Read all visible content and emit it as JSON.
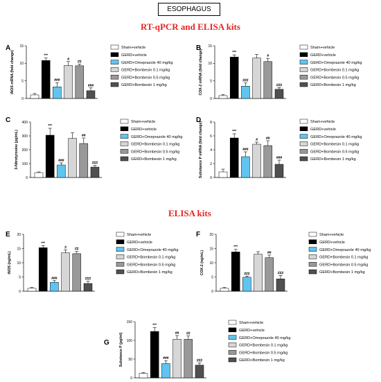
{
  "header": {
    "box_title": "ESOPHAGUS"
  },
  "sections": {
    "rtqpcr_title": "RT-qPCR and ELISA kits",
    "elisa_title": "ELISA kits"
  },
  "colors": {
    "sham": "#ffffff",
    "gerd": "#000000",
    "omeprazole": "#5fc5f0",
    "b01": "#d6d6d6",
    "b05": "#999999",
    "b1": "#505050",
    "section_red": "#e3261f"
  },
  "chart_data": [
    {
      "type": "bar",
      "panel": "A",
      "ylabel": "iNOS mRNA (fold change)",
      "ylim": [
        0,
        15
      ],
      "yticks": [
        0,
        5,
        10,
        15
      ],
      "categories": [
        "Sham+vehicle",
        "GERD+vehicle",
        "GERD+Omeprazole 40 mg/kg",
        "GERD+Bombesin 0.1 mg/kg",
        "GERD+Bombesin 0.5 mg/kg",
        "GERD+Bombesin 1 mg/kg"
      ],
      "values": [
        1.0,
        10.8,
        3.3,
        9.4,
        9.3,
        2.2
      ],
      "errors": [
        0.4,
        0.7,
        1.2,
        1.1,
        0.5,
        0.8
      ],
      "annotations": [
        "",
        "***",
        "###",
        "#",
        "##",
        "###"
      ]
    },
    {
      "type": "bar",
      "panel": "B",
      "ylabel": "COX-2 mRNA (fold change)",
      "ylim": [
        0,
        15
      ],
      "yticks": [
        0,
        5,
        10,
        15
      ],
      "categories": [
        "Sham+vehicle",
        "GERD+vehicle",
        "GERD+Omeprazole 40 mg/kg",
        "GERD+Bombesin 0.1 mg/kg",
        "GERD+Bombesin 0.5 mg/kg",
        "GERD+Bombesin 1 mg/kg"
      ],
      "values": [
        0.8,
        11.8,
        3.5,
        11.5,
        10.5,
        2.6
      ],
      "errors": [
        0.3,
        0.6,
        0.9,
        1.0,
        0.9,
        0.5
      ],
      "annotations": [
        "",
        "***",
        "###",
        "",
        "#",
        "###"
      ]
    },
    {
      "type": "bar",
      "panel": "C",
      "ylabel": "3-Nitrotyrosine (pg/mL)",
      "ylim": [
        0,
        400
      ],
      "yticks": [
        0,
        100,
        200,
        300,
        400
      ],
      "categories": [
        "Sham+vehicle",
        "GERD+vehicle",
        "GERD+Omeprazole 40 mg/kg",
        "GERD+Bombesin 0.1 mg/kg",
        "GERD+Bombesin 0.5 mg/kg",
        "GERD+Bombesin 1 mg/kg"
      ],
      "values": [
        35,
        305,
        90,
        282,
        245,
        75
      ],
      "errors": [
        5,
        50,
        15,
        40,
        40,
        12
      ],
      "annotations": [
        "",
        "***",
        "###",
        "",
        "##",
        "###"
      ]
    },
    {
      "type": "bar",
      "panel": "D",
      "ylabel": "Substance P mRNA (fold change)",
      "ylim": [
        0,
        8
      ],
      "yticks": [
        0,
        2,
        4,
        6,
        8
      ],
      "categories": [
        "Sham+vehicle",
        "GERD+vehicle",
        "GERD+Omeprazole 40 mg/kg",
        "GERD+Bombesin 0.1 mg/kg",
        "GERD+Bombesin 0.5 mg/kg",
        "GERD+Bombesin 1 mg/kg"
      ],
      "values": [
        0.8,
        5.7,
        3.0,
        4.8,
        4.6,
        1.9
      ],
      "errors": [
        0.4,
        0.6,
        0.7,
        0.3,
        0.7,
        0.6
      ],
      "annotations": [
        "",
        "***",
        "###",
        "#",
        "##",
        "###"
      ]
    },
    {
      "type": "bar",
      "panel": "E",
      "ylabel": "iNOS (ng/mL)",
      "ylim": [
        0,
        20
      ],
      "yticks": [
        0,
        5,
        10,
        15,
        20
      ],
      "categories": [
        "Sham+vehicle",
        "GERD+vehicle",
        "GERD+Omeprazole 40 mg/kg",
        "GERD+Bombesin 0.1 mg/kg",
        "GERD+Bombesin 0.5 mg/kg",
        "GERD+Bombesin 1 mg/kg"
      ],
      "values": [
        1.0,
        15.3,
        3.1,
        13.5,
        13.2,
        2.7
      ],
      "errors": [
        0.3,
        0.7,
        0.6,
        1.0,
        0.8,
        0.8
      ],
      "annotations": [
        "",
        "***",
        "###",
        "#",
        "##",
        "###"
      ]
    },
    {
      "type": "bar",
      "panel": "F",
      "ylabel": "COX-2 (ng/mL)",
      "ylim": [
        0,
        20
      ],
      "yticks": [
        0,
        5,
        10,
        15,
        20
      ],
      "categories": [
        "Sham+vehicle",
        "GERD+vehicle",
        "GERD+Omeprazole 40 mg/kg",
        "GERD+Bombesin 0.1 mg/kg",
        "GERD+Bombesin 0.5 mg/kg",
        "GERD+Bombesin 1 mg/kg"
      ],
      "values": [
        1.0,
        13.8,
        4.9,
        13.0,
        11.8,
        4.3
      ],
      "errors": [
        0.3,
        0.9,
        0.4,
        0.9,
        0.9,
        1.2
      ],
      "annotations": [
        "",
        "***",
        "###",
        "",
        "##",
        "###"
      ]
    },
    {
      "type": "bar",
      "panel": "G",
      "ylabel": "Substance P (pg/ml)",
      "ylim": [
        0,
        150
      ],
      "yticks": [
        0,
        50,
        100,
        150
      ],
      "categories": [
        "Sham+vehicle",
        "GERD+vehicle",
        "GERD+Omeprazole 40 mg/kg",
        "GERD+Bombesin 0.1 mg/kg",
        "GERD+Bombesin 0.5 mg/kg",
        "GERD+Bombesin 1 mg/kg"
      ],
      "values": [
        12,
        124,
        38,
        103,
        103,
        34
      ],
      "errors": [
        2,
        10,
        8,
        10,
        9,
        6
      ],
      "annotations": [
        "",
        "***",
        "###",
        "##",
        "##",
        "###"
      ]
    }
  ]
}
